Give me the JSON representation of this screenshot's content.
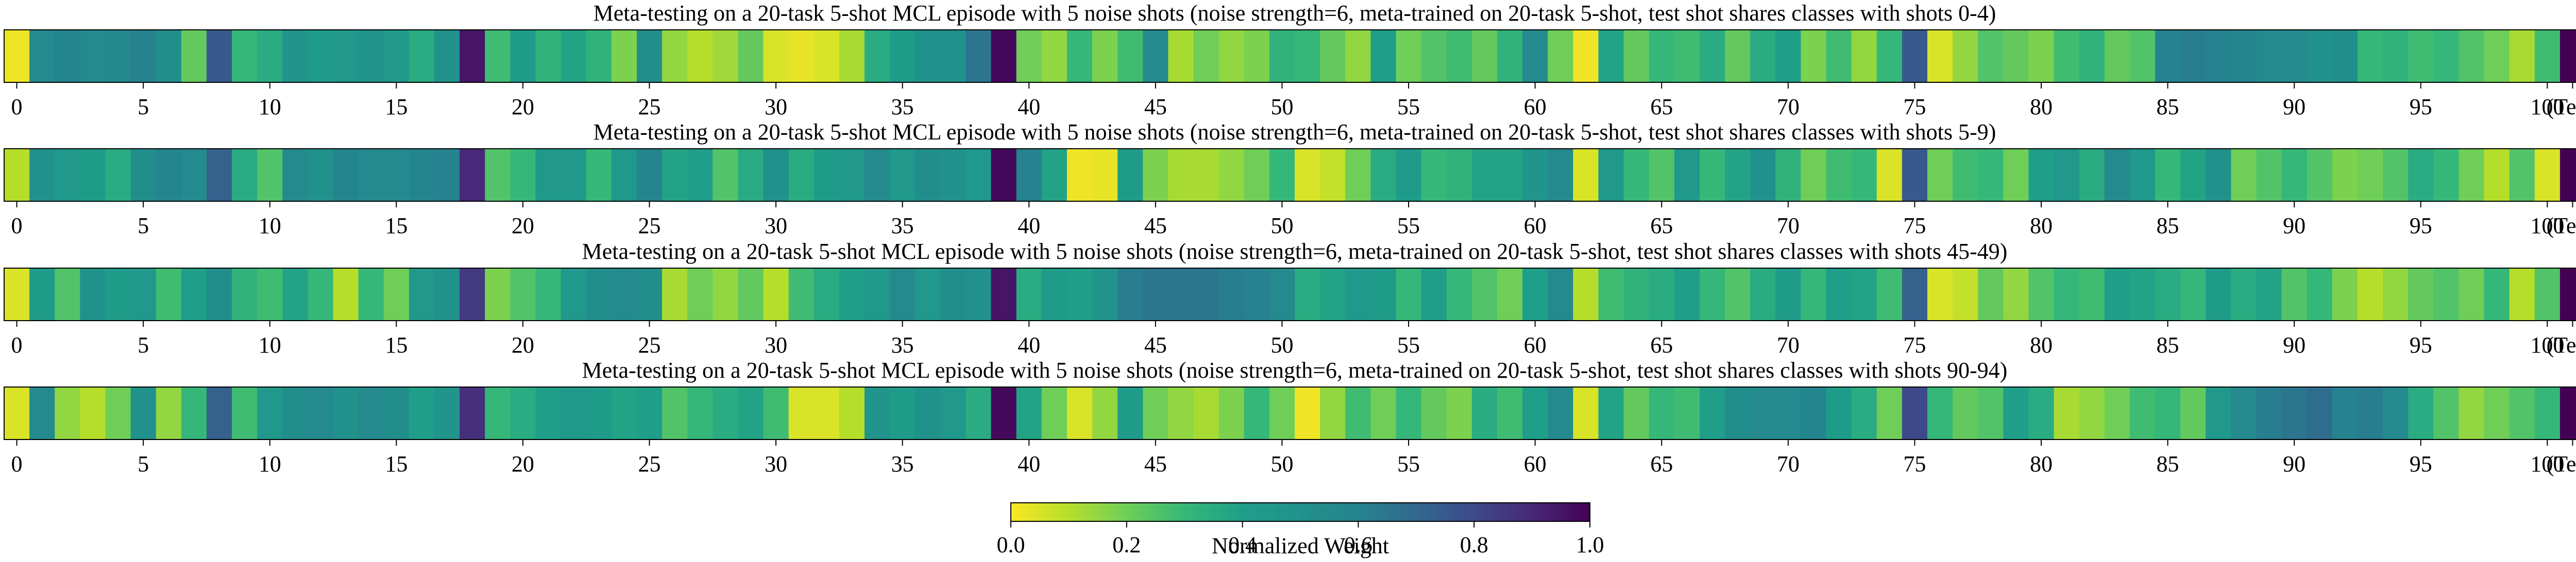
{
  "chart_data": {
    "type": "heatmap",
    "colormap": "viridis_r",
    "value_range": [
      0.0,
      1.0
    ],
    "panels": [
      {
        "title": "Meta-testing on a 20-task 5-shot MCL episode with 5 noise shots (noise strength=6, meta-trained on 20-task 5-shot, test shot shares classes with shots 0-4)",
        "values": [
          0.02,
          0.55,
          0.58,
          0.55,
          0.56,
          0.6,
          0.52,
          0.22,
          0.75,
          0.3,
          0.35,
          0.48,
          0.42,
          0.45,
          0.48,
          0.44,
          0.35,
          0.5,
          0.95,
          0.28,
          0.42,
          0.32,
          0.38,
          0.32,
          0.18,
          0.52,
          0.15,
          0.1,
          0.13,
          0.22,
          0.05,
          0.03,
          0.05,
          0.12,
          0.35,
          0.42,
          0.5,
          0.5,
          0.65,
          0.98,
          0.2,
          0.15,
          0.3,
          0.18,
          0.28,
          0.55,
          0.12,
          0.2,
          0.15,
          0.18,
          0.32,
          0.3,
          0.22,
          0.15,
          0.4,
          0.2,
          0.25,
          0.28,
          0.22,
          0.32,
          0.55,
          0.2,
          0.02,
          0.38,
          0.22,
          0.3,
          0.28,
          0.35,
          0.22,
          0.35,
          0.4,
          0.18,
          0.28,
          0.15,
          0.3,
          0.75,
          0.05,
          0.15,
          0.25,
          0.22,
          0.18,
          0.28,
          0.32,
          0.22,
          0.25,
          0.6,
          0.62,
          0.6,
          0.58,
          0.55,
          0.55,
          0.5,
          0.52,
          0.3,
          0.32,
          0.28,
          0.3,
          0.25,
          0.2,
          0.12,
          0.28,
          1.0
        ]
      },
      {
        "title": "Meta-testing on a 20-task 5-shot MCL episode with 5 noise shots (noise strength=6, meta-trained on 20-task 5-shot, test shot shares classes with shots 5-9)",
        "values": [
          0.1,
          0.5,
          0.45,
          0.42,
          0.35,
          0.52,
          0.58,
          0.55,
          0.72,
          0.35,
          0.25,
          0.55,
          0.5,
          0.58,
          0.55,
          0.55,
          0.58,
          0.6,
          0.9,
          0.25,
          0.3,
          0.45,
          0.45,
          0.3,
          0.45,
          0.58,
          0.38,
          0.4,
          0.25,
          0.35,
          0.5,
          0.35,
          0.42,
          0.45,
          0.55,
          0.45,
          0.52,
          0.5,
          0.45,
          0.98,
          0.6,
          0.38,
          0.02,
          0.03,
          0.42,
          0.18,
          0.12,
          0.12,
          0.15,
          0.2,
          0.3,
          0.05,
          0.08,
          0.2,
          0.35,
          0.42,
          0.3,
          0.32,
          0.38,
          0.38,
          0.48,
          0.55,
          0.05,
          0.45,
          0.3,
          0.25,
          0.45,
          0.3,
          0.38,
          0.5,
          0.32,
          0.2,
          0.28,
          0.3,
          0.05,
          0.75,
          0.2,
          0.28,
          0.3,
          0.2,
          0.4,
          0.45,
          0.35,
          0.55,
          0.45,
          0.3,
          0.38,
          0.5,
          0.2,
          0.25,
          0.3,
          0.25,
          0.18,
          0.2,
          0.25,
          0.35,
          0.3,
          0.2,
          0.1,
          0.25,
          0.05,
          1.0
        ]
      },
      {
        "title": "Meta-testing on a 20-task 5-shot MCL episode with 5 noise shots (noise strength=6, meta-trained on 20-task 5-shot, test shot shares classes with shots 45-49)",
        "values": [
          0.05,
          0.42,
          0.25,
          0.5,
          0.42,
          0.45,
          0.28,
          0.4,
          0.52,
          0.32,
          0.28,
          0.38,
          0.3,
          0.1,
          0.3,
          0.2,
          0.45,
          0.5,
          0.85,
          0.18,
          0.25,
          0.3,
          0.45,
          0.52,
          0.55,
          0.52,
          0.12,
          0.2,
          0.15,
          0.22,
          0.1,
          0.28,
          0.35,
          0.4,
          0.45,
          0.55,
          0.45,
          0.52,
          0.5,
          0.95,
          0.35,
          0.42,
          0.4,
          0.48,
          0.62,
          0.65,
          0.65,
          0.65,
          0.62,
          0.6,
          0.55,
          0.35,
          0.38,
          0.45,
          0.42,
          0.3,
          0.4,
          0.3,
          0.25,
          0.2,
          0.4,
          0.55,
          0.1,
          0.28,
          0.32,
          0.35,
          0.4,
          0.3,
          0.25,
          0.35,
          0.42,
          0.3,
          0.4,
          0.38,
          0.28,
          0.72,
          0.05,
          0.08,
          0.22,
          0.15,
          0.25,
          0.3,
          0.28,
          0.4,
          0.38,
          0.35,
          0.3,
          0.42,
          0.35,
          0.38,
          0.25,
          0.3,
          0.18,
          0.1,
          0.15,
          0.22,
          0.25,
          0.2,
          0.3,
          0.1,
          0.25,
          1.0
        ]
      },
      {
        "title": "Meta-testing on a 20-task 5-shot MCL episode with 5 noise shots (noise strength=6, meta-trained on 20-task 5-shot, test shot shares classes with shots 90-94)",
        "values": [
          0.05,
          0.55,
          0.15,
          0.1,
          0.2,
          0.5,
          0.15,
          0.3,
          0.72,
          0.28,
          0.45,
          0.52,
          0.55,
          0.5,
          0.55,
          0.52,
          0.4,
          0.48,
          0.88,
          0.3,
          0.35,
          0.4,
          0.45,
          0.42,
          0.38,
          0.4,
          0.25,
          0.3,
          0.35,
          0.38,
          0.28,
          0.05,
          0.05,
          0.1,
          0.48,
          0.42,
          0.5,
          0.45,
          0.35,
          0.98,
          0.38,
          0.2,
          0.05,
          0.15,
          0.42,
          0.2,
          0.15,
          0.12,
          0.18,
          0.3,
          0.2,
          0.02,
          0.15,
          0.28,
          0.2,
          0.3,
          0.22,
          0.18,
          0.35,
          0.28,
          0.4,
          0.55,
          0.05,
          0.38,
          0.22,
          0.3,
          0.28,
          0.4,
          0.52,
          0.55,
          0.55,
          0.58,
          0.42,
          0.35,
          0.2,
          0.8,
          0.3,
          0.22,
          0.25,
          0.4,
          0.35,
          0.12,
          0.15,
          0.2,
          0.28,
          0.3,
          0.22,
          0.45,
          0.55,
          0.62,
          0.65,
          0.68,
          0.6,
          0.62,
          0.55,
          0.35,
          0.25,
          0.15,
          0.2,
          0.25,
          0.3,
          1.0
        ]
      }
    ],
    "x_ticks": [
      {
        "pos": 0,
        "label": "0"
      },
      {
        "pos": 5,
        "label": "5"
      },
      {
        "pos": 10,
        "label": "10"
      },
      {
        "pos": 15,
        "label": "15"
      },
      {
        "pos": 20,
        "label": "20"
      },
      {
        "pos": 25,
        "label": "25"
      },
      {
        "pos": 30,
        "label": "30"
      },
      {
        "pos": 35,
        "label": "35"
      },
      {
        "pos": 40,
        "label": "40"
      },
      {
        "pos": 45,
        "label": "45"
      },
      {
        "pos": 50,
        "label": "50"
      },
      {
        "pos": 55,
        "label": "55"
      },
      {
        "pos": 60,
        "label": "60"
      },
      {
        "pos": 65,
        "label": "65"
      },
      {
        "pos": 70,
        "label": "70"
      },
      {
        "pos": 75,
        "label": "75"
      },
      {
        "pos": 80,
        "label": "80"
      },
      {
        "pos": 85,
        "label": "85"
      },
      {
        "pos": 90,
        "label": "90"
      },
      {
        "pos": 95,
        "label": "95"
      },
      {
        "pos": 100,
        "label": "100"
      },
      {
        "pos": 101,
        "label": "(Test)"
      }
    ],
    "colorbar": {
      "label": "Normalized Weight",
      "ticks": [
        "0.0",
        "0.2",
        "0.4",
        "0.6",
        "0.8",
        "1.0"
      ],
      "tick_values": [
        0.0,
        0.2,
        0.4,
        0.6,
        0.8,
        1.0
      ]
    }
  }
}
